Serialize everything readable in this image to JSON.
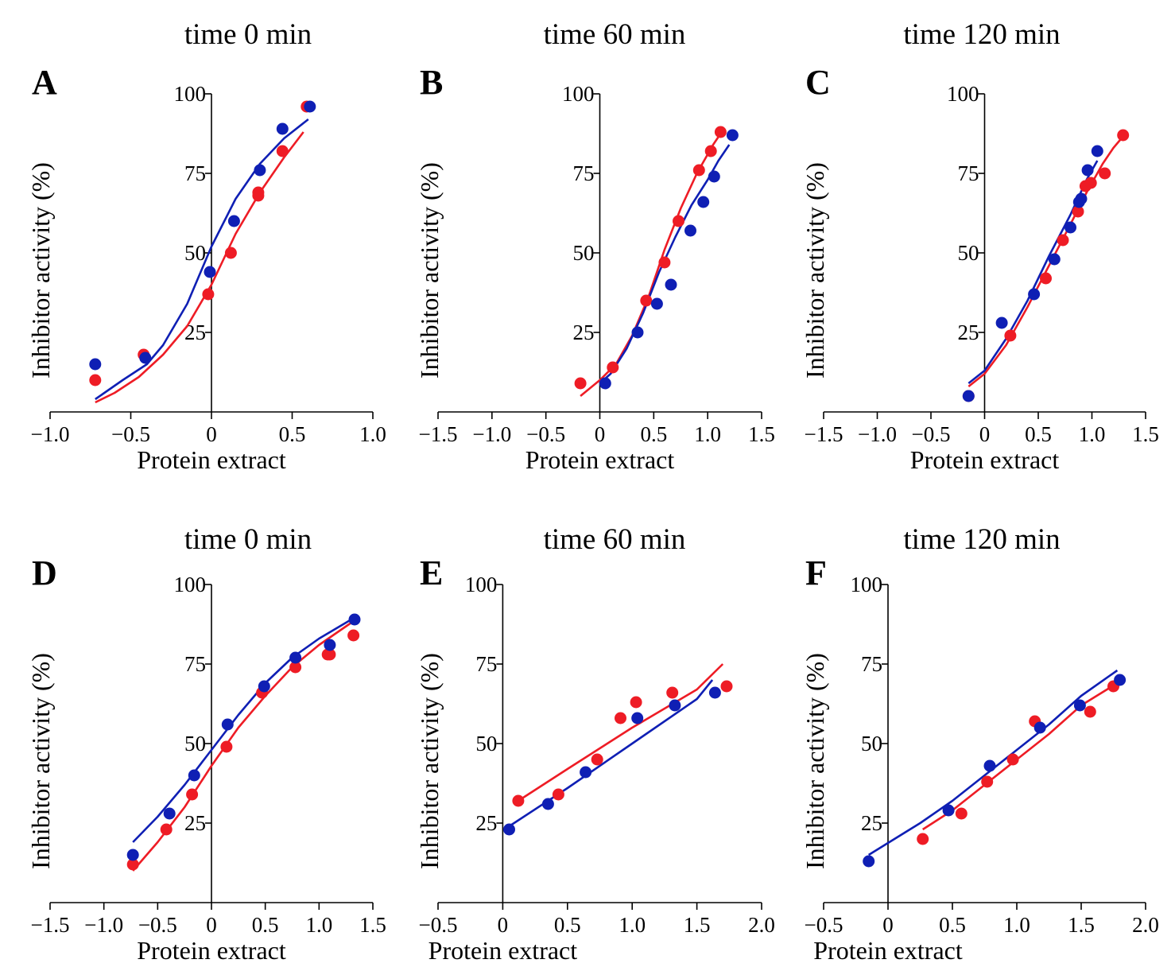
{
  "chart_data": [
    {
      "type": "scatter",
      "panel_label": "A",
      "title": "time 0 min",
      "xlabel": "Protein extract",
      "ylabel": "Inhibitor activity (%)",
      "xlim": [
        -1.0,
        1.0
      ],
      "ylim": [
        0,
        100
      ],
      "xticks": [
        -1.0,
        -0.5,
        0,
        0.5,
        1.0
      ],
      "xtick_labels": [
        "−1.0",
        "−0.5",
        "0",
        "0.5",
        "1.0"
      ],
      "yticks": [
        25,
        50,
        75,
        100
      ],
      "ytick_labels": [
        "25",
        "50",
        "75",
        "100"
      ],
      "grid": false,
      "series": [
        {
          "name": "red",
          "color": "#ee1c25",
          "points": [
            [
              -0.72,
              10
            ],
            [
              -0.42,
              18
            ],
            [
              -0.02,
              37
            ],
            [
              0.12,
              50
            ],
            [
              0.29,
              68
            ],
            [
              0.29,
              69
            ],
            [
              0.44,
              82
            ],
            [
              0.59,
              96
            ]
          ],
          "fit": [
            [
              -0.72,
              3
            ],
            [
              -0.6,
              6
            ],
            [
              -0.45,
              11
            ],
            [
              -0.3,
              18
            ],
            [
              -0.15,
              27
            ],
            [
              0.0,
              40
            ],
            [
              0.15,
              56
            ],
            [
              0.3,
              69
            ],
            [
              0.45,
              80
            ],
            [
              0.57,
              88
            ]
          ]
        },
        {
          "name": "blue",
          "color": "#0f1fb4",
          "points": [
            [
              -0.72,
              15
            ],
            [
              -0.41,
              17
            ],
            [
              -0.01,
              44
            ],
            [
              0.14,
              60
            ],
            [
              0.3,
              76
            ],
            [
              0.44,
              89
            ],
            [
              0.61,
              96
            ]
          ],
          "fit": [
            [
              -0.72,
              4
            ],
            [
              -0.55,
              10
            ],
            [
              -0.4,
              15
            ],
            [
              -0.3,
              21
            ],
            [
              -0.15,
              34
            ],
            [
              0.0,
              52
            ],
            [
              0.15,
              67
            ],
            [
              0.3,
              78
            ],
            [
              0.45,
              86
            ],
            [
              0.6,
              92
            ]
          ]
        }
      ]
    },
    {
      "type": "scatter",
      "panel_label": "B",
      "title": "time 60 min",
      "xlabel": "Protein extract",
      "ylabel": "Inhibitor activity (%)",
      "xlim": [
        -1.5,
        1.5
      ],
      "ylim": [
        0,
        100
      ],
      "xticks": [
        -1.5,
        -1.0,
        -0.5,
        0,
        0.5,
        1.0,
        1.5
      ],
      "xtick_labels": [
        "−1.5",
        "−1.0",
        "−0.5",
        "0",
        "0.5",
        "1.0",
        "1.5"
      ],
      "yticks": [
        25,
        50,
        75,
        100
      ],
      "ytick_labels": [
        "25",
        "50",
        "75",
        "100"
      ],
      "grid": false,
      "series": [
        {
          "name": "red",
          "color": "#ee1c25",
          "points": [
            [
              -0.18,
              9
            ],
            [
              0.12,
              14
            ],
            [
              0.43,
              35
            ],
            [
              0.6,
              47
            ],
            [
              0.73,
              60
            ],
            [
              0.92,
              76
            ],
            [
              1.03,
              82
            ],
            [
              1.12,
              88
            ]
          ],
          "fit": [
            [
              -0.18,
              5
            ],
            [
              0.0,
              10
            ],
            [
              0.15,
              15
            ],
            [
              0.3,
              24
            ],
            [
              0.45,
              36
            ],
            [
              0.6,
              51
            ],
            [
              0.75,
              64
            ],
            [
              0.9,
              75
            ],
            [
              1.05,
              84
            ],
            [
              1.15,
              89
            ]
          ]
        },
        {
          "name": "blue",
          "color": "#0f1fb4",
          "points": [
            [
              0.05,
              9
            ],
            [
              0.35,
              25
            ],
            [
              0.53,
              34
            ],
            [
              0.66,
              40
            ],
            [
              0.84,
              57
            ],
            [
              0.96,
              66
            ],
            [
              1.06,
              74
            ],
            [
              1.23,
              87
            ]
          ],
          "fit": [
            [
              0.0,
              9
            ],
            [
              0.1,
              12
            ],
            [
              0.25,
              20
            ],
            [
              0.4,
              31
            ],
            [
              0.55,
              44
            ],
            [
              0.7,
              55
            ],
            [
              0.85,
              65
            ],
            [
              1.0,
              73
            ],
            [
              1.1,
              79
            ],
            [
              1.2,
              84
            ]
          ]
        }
      ]
    },
    {
      "type": "scatter",
      "panel_label": "C",
      "title": "time 120 min",
      "xlabel": "Protein extract",
      "ylabel": "Inhibitor activity (%)",
      "xlim": [
        -1.5,
        1.5
      ],
      "ylim": [
        0,
        100
      ],
      "xticks": [
        -1.5,
        -1.0,
        -0.5,
        0,
        0.5,
        1.0,
        1.5
      ],
      "xtick_labels": [
        "−1.5",
        "−1.0",
        "−0.5",
        "0",
        "0.5",
        "1.0",
        "1.5"
      ],
      "yticks": [
        25,
        50,
        75,
        100
      ],
      "ytick_labels": [
        "25",
        "50",
        "75",
        "100"
      ],
      "grid": false,
      "series": [
        {
          "name": "red",
          "color": "#ee1c25",
          "points": [
            [
              -0.15,
              5
            ],
            [
              0.24,
              24
            ],
            [
              0.57,
              42
            ],
            [
              0.73,
              54
            ],
            [
              0.87,
              63
            ],
            [
              0.94,
              71
            ],
            [
              0.99,
              72
            ],
            [
              1.12,
              75
            ],
            [
              1.29,
              87
            ]
          ],
          "fit": [
            [
              -0.15,
              8
            ],
            [
              0.0,
              12
            ],
            [
              0.2,
              21
            ],
            [
              0.4,
              33
            ],
            [
              0.6,
              46
            ],
            [
              0.8,
              59
            ],
            [
              0.95,
              69
            ],
            [
              1.1,
              78
            ],
            [
              1.2,
              83
            ],
            [
              1.3,
              87
            ]
          ]
        },
        {
          "name": "blue",
          "color": "#0f1fb4",
          "points": [
            [
              -0.15,
              5
            ],
            [
              0.16,
              28
            ],
            [
              0.46,
              37
            ],
            [
              0.65,
              48
            ],
            [
              0.8,
              58
            ],
            [
              0.88,
              66
            ],
            [
              0.9,
              67
            ],
            [
              0.96,
              76
            ],
            [
              1.05,
              82
            ]
          ],
          "fit": [
            [
              -0.15,
              9
            ],
            [
              0.0,
              13
            ],
            [
              0.2,
              23
            ],
            [
              0.4,
              35
            ],
            [
              0.6,
              49
            ],
            [
              0.8,
              62
            ],
            [
              0.95,
              73
            ],
            [
              1.05,
              79
            ]
          ]
        }
      ]
    },
    {
      "type": "scatter",
      "panel_label": "D",
      "title": "time 0 min",
      "xlabel": "Protein extract",
      "ylabel": "Inhibitor activity (%)",
      "xlim": [
        -1.5,
        1.5
      ],
      "ylim": [
        0,
        100
      ],
      "xticks": [
        -1.5,
        -1.0,
        -0.5,
        0,
        0.5,
        1.0,
        1.5
      ],
      "xtick_labels": [
        "−1.5",
        "−1.0",
        "−0.5",
        "0",
        "0.5",
        "1.0",
        "1.5"
      ],
      "yticks": [
        25,
        50,
        75,
        100
      ],
      "ytick_labels": [
        "25",
        "50",
        "75",
        "100"
      ],
      "grid": false,
      "series": [
        {
          "name": "red",
          "color": "#ee1c25",
          "points": [
            [
              -0.73,
              12
            ],
            [
              -0.42,
              23
            ],
            [
              -0.18,
              34
            ],
            [
              0.14,
              49
            ],
            [
              0.47,
              66
            ],
            [
              0.78,
              74
            ],
            [
              1.08,
              78
            ],
            [
              1.1,
              78
            ],
            [
              1.32,
              84
            ]
          ],
          "fit": [
            [
              -0.73,
              10
            ],
            [
              -0.5,
              19
            ],
            [
              -0.25,
              30
            ],
            [
              0.0,
              43
            ],
            [
              0.25,
              55
            ],
            [
              0.5,
              65
            ],
            [
              0.75,
              74
            ],
            [
              1.0,
              81
            ],
            [
              1.3,
              88
            ]
          ]
        },
        {
          "name": "blue",
          "color": "#0f1fb4",
          "points": [
            [
              -0.73,
              15
            ],
            [
              -0.39,
              28
            ],
            [
              -0.16,
              40
            ],
            [
              0.15,
              56
            ],
            [
              0.49,
              68
            ],
            [
              0.78,
              77
            ],
            [
              1.1,
              81
            ],
            [
              1.33,
              89
            ]
          ],
          "fit": [
            [
              -0.73,
              19
            ],
            [
              -0.5,
              27
            ],
            [
              -0.25,
              37
            ],
            [
              0.0,
              48
            ],
            [
              0.25,
              59
            ],
            [
              0.5,
              69
            ],
            [
              0.75,
              77
            ],
            [
              1.0,
              83
            ],
            [
              1.3,
              89
            ]
          ]
        }
      ]
    },
    {
      "type": "scatter",
      "panel_label": "E",
      "title": "time 60 min",
      "xlabel": "Protein extract",
      "ylabel": "Inhibitor activity (%)",
      "xlim": [
        -0.5,
        2.0
      ],
      "ylim": [
        0,
        100
      ],
      "xticks": [
        -0.5,
        0,
        0.5,
        1.0,
        1.5,
        2.0
      ],
      "xtick_labels": [
        "−0.5",
        "0",
        "0.5",
        "1.0",
        "1.5",
        "2.0"
      ],
      "yticks": [
        25,
        50,
        75,
        100
      ],
      "ytick_labels": [
        "25",
        "50",
        "75",
        "100"
      ],
      "grid": false,
      "series": [
        {
          "name": "red",
          "color": "#ee1c25",
          "points": [
            [
              0.12,
              32
            ],
            [
              0.43,
              34
            ],
            [
              0.73,
              45
            ],
            [
              0.91,
              58
            ],
            [
              1.03,
              63
            ],
            [
              1.31,
              66
            ],
            [
              1.73,
              68
            ]
          ],
          "fit": [
            [
              0.12,
              32
            ],
            [
              0.5,
              42
            ],
            [
              1.0,
              55
            ],
            [
              1.5,
              67
            ],
            [
              1.7,
              75
            ]
          ]
        },
        {
          "name": "blue",
          "color": "#0f1fb4",
          "points": [
            [
              0.05,
              23
            ],
            [
              0.35,
              31
            ],
            [
              0.64,
              41
            ],
            [
              1.04,
              58
            ],
            [
              1.33,
              62
            ],
            [
              1.64,
              66
            ]
          ],
          "fit": [
            [
              0.05,
              24
            ],
            [
              0.5,
              36
            ],
            [
              1.0,
              50
            ],
            [
              1.5,
              64
            ],
            [
              1.62,
              70
            ]
          ]
        }
      ]
    },
    {
      "type": "scatter",
      "panel_label": "F",
      "title": "time 120 min",
      "xlabel": "Protein extract",
      "ylabel": "Inhibitor activity (%)",
      "xlim": [
        -0.5,
        2.0
      ],
      "ylim": [
        0,
        100
      ],
      "xticks": [
        -0.5,
        0,
        0.5,
        1.0,
        1.5,
        2.0
      ],
      "xtick_labels": [
        "−0.5",
        "0",
        "0.5",
        "1.0",
        "1.5",
        "2.0"
      ],
      "yticks": [
        25,
        50,
        75,
        100
      ],
      "ytick_labels": [
        "25",
        "50",
        "75",
        "100"
      ],
      "grid": false,
      "series": [
        {
          "name": "red",
          "color": "#ee1c25",
          "points": [
            [
              0.27,
              20
            ],
            [
              0.57,
              28
            ],
            [
              0.77,
              38
            ],
            [
              0.97,
              45
            ],
            [
              1.14,
              57
            ],
            [
              1.57,
              60
            ],
            [
              1.75,
              68
            ]
          ],
          "fit": [
            [
              0.27,
              23
            ],
            [
              0.5,
              29
            ],
            [
              0.75,
              37
            ],
            [
              1.0,
              45
            ],
            [
              1.25,
              53
            ],
            [
              1.5,
              62
            ],
            [
              1.78,
              69
            ]
          ]
        },
        {
          "name": "blue",
          "color": "#0f1fb4",
          "points": [
            [
              -0.15,
              13
            ],
            [
              0.47,
              29
            ],
            [
              0.79,
              43
            ],
            [
              1.18,
              55
            ],
            [
              1.49,
              62
            ],
            [
              1.8,
              70
            ]
          ],
          "fit": [
            [
              -0.15,
              15
            ],
            [
              0.25,
              25
            ],
            [
              0.5,
              32
            ],
            [
              0.75,
              40
            ],
            [
              1.0,
              48
            ],
            [
              1.25,
              56
            ],
            [
              1.5,
              65
            ],
            [
              1.78,
              73
            ]
          ]
        }
      ]
    }
  ]
}
